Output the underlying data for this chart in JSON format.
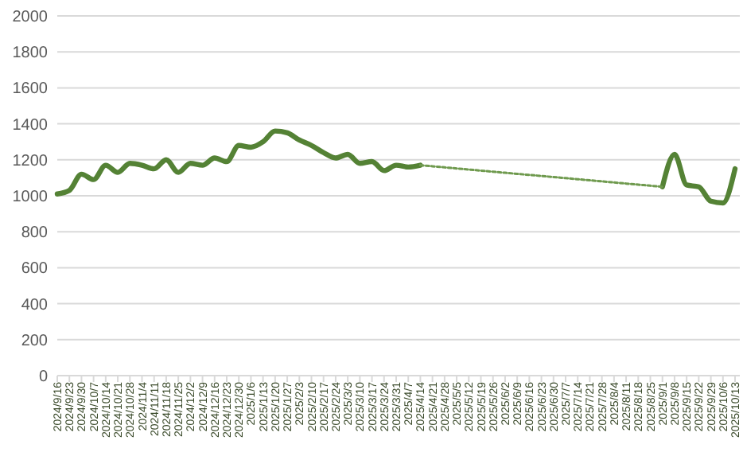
{
  "chart_data": {
    "type": "line",
    "categories": [
      "2024/9/16",
      "2024/9/23",
      "2024/9/30",
      "2024/10/7",
      "2024/10/14",
      "2024/10/21",
      "2024/10/28",
      "2024/11/4",
      "2024/11/11",
      "2024/11/18",
      "2024/11/25",
      "2024/12/2",
      "2024/12/9",
      "2024/12/16",
      "2024/12/23",
      "2024/12/30",
      "2025/1/6",
      "2025/1/13",
      "2025/1/20",
      "2025/1/27",
      "2025/2/3",
      "2025/2/10",
      "2025/2/17",
      "2025/2/24",
      "2025/3/3",
      "2025/3/10",
      "2025/3/17",
      "2025/3/24",
      "2025/3/31",
      "2025/4/7",
      "2025/4/14",
      "2025/4/21",
      "2025/4/28",
      "2025/5/5",
      "2025/5/12",
      "2025/5/19",
      "2025/5/26",
      "2025/6/2",
      "2025/6/9",
      "2025/6/16",
      "2025/6/23",
      "2025/6/30",
      "2025/7/7",
      "2025/7/14",
      "2025/7/21",
      "2025/7/28",
      "2025/8/4",
      "2025/8/11",
      "2025/8/18",
      "2025/8/25",
      "2025/9/1",
      "2025/9/8",
      "2025/9/15",
      "2025/9/22",
      "2025/9/29",
      "2025/10/6",
      "2025/10/13"
    ],
    "series": [
      {
        "color": "#548235",
        "line_style": "solid",
        "values": [
          1010,
          1030,
          1120,
          1090,
          1170,
          1130,
          1180,
          1170,
          1150,
          1200,
          1130,
          1180,
          1170,
          1210,
          1190,
          1280,
          1270,
          1300,
          1360,
          1350,
          1310,
          1280,
          1240,
          1210,
          1230,
          1180,
          1190,
          1140,
          1170,
          1160,
          1170,
          null,
          null,
          null,
          null,
          null,
          null,
          null,
          null,
          null,
          null,
          null,
          null,
          null,
          null,
          null,
          null,
          null,
          null,
          null,
          1050,
          1230,
          1060,
          1050,
          970,
          960,
          1150
        ]
      },
      {
        "color": "#6f9a4e",
        "line_style": "dotted",
        "values": [
          null,
          null,
          null,
          null,
          null,
          null,
          null,
          null,
          null,
          null,
          null,
          null,
          null,
          null,
          null,
          null,
          null,
          null,
          null,
          null,
          null,
          null,
          null,
          null,
          null,
          null,
          null,
          null,
          null,
          null,
          1170,
          1164,
          1158,
          1152,
          1146,
          1140,
          1134,
          1128,
          1122,
          1116,
          1110,
          1104,
          1098,
          1092,
          1086,
          1080,
          1074,
          1068,
          1062,
          1056,
          1050,
          null,
          null,
          null,
          null,
          null,
          null
        ]
      }
    ],
    "ylim": [
      0,
      2000
    ],
    "yticks": [
      0,
      200,
      400,
      600,
      800,
      1000,
      1200,
      1400,
      1600,
      1800,
      2000
    ],
    "grid": "y"
  }
}
